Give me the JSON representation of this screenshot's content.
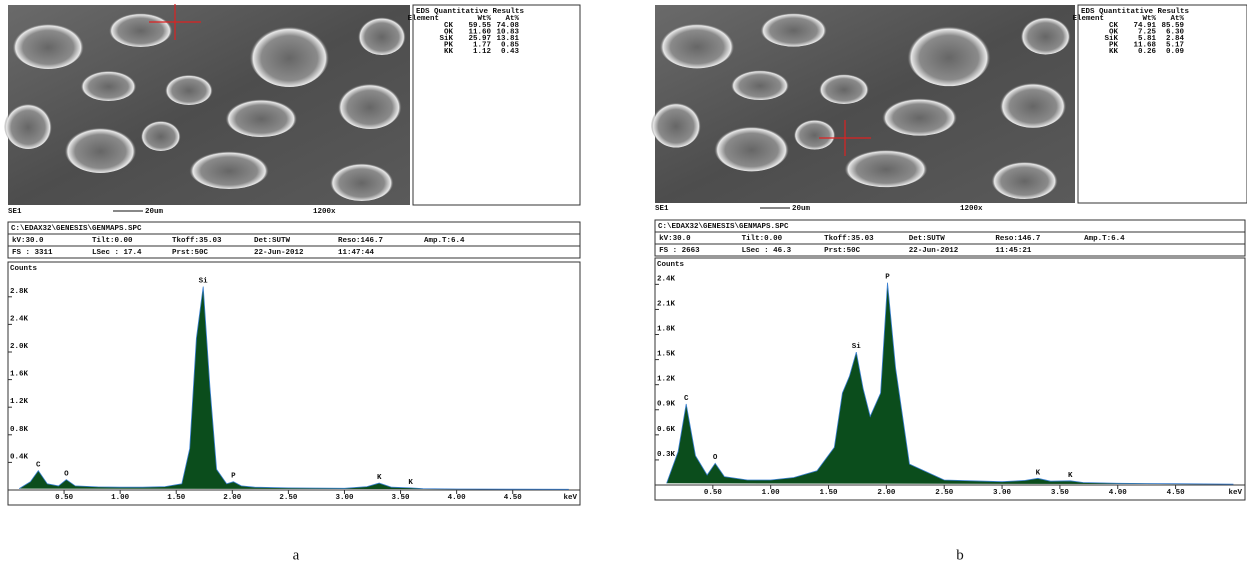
{
  "panels": [
    {
      "sem": {
        "detector": "SE1",
        "scale": "20um",
        "magnification": "1200x"
      },
      "results": {
        "title": "EDS Quantitative Results",
        "header": [
          "Element",
          "Wt%",
          "At%"
        ],
        "rows": [
          [
            "CK",
            "59.55",
            "74.08"
          ],
          [
            "OK",
            "11.60",
            "10.83"
          ],
          [
            "SiK",
            "25.97",
            "13.81"
          ],
          [
            "PK",
            "1.77",
            "0.85"
          ],
          [
            "KK",
            "1.12",
            "0.43"
          ]
        ]
      },
      "spectrum_header": {
        "file": "C:\\EDAX32\\GENESIS\\GENMAPS.SPC",
        "line1": [
          "kV:30.0",
          "Tilt:0.00",
          "Tkoff:35.03",
          "Det:SUTW",
          "Reso:146.7",
          "Amp.T:6.4"
        ],
        "line2": [
          "FS : 3311",
          "LSec : 17.4",
          "Prst:50C",
          "22-Jun-2012",
          "11:47:44"
        ]
      },
      "caption": "a"
    },
    {
      "sem": {
        "detector": "SE1",
        "scale": "20um",
        "magnification": "1200x"
      },
      "results": {
        "title": "EDS Quantitative Results",
        "header": [
          "Element",
          "Wt%",
          "At%"
        ],
        "rows": [
          [
            "CK",
            "74.91",
            "85.59"
          ],
          [
            "OK",
            "7.25",
            "6.30"
          ],
          [
            "SiK",
            "5.81",
            "2.84"
          ],
          [
            "PK",
            "11.68",
            "5.17"
          ],
          [
            "KK",
            "0.26",
            "0.09"
          ]
        ]
      },
      "spectrum_header": {
        "file": "C:\\EDAX32\\GENESIS\\GENMAPS.SPC",
        "line1": [
          "kV:30.0",
          "Tilt:0.00",
          "Tkoff:35.03",
          "Det:SUTW",
          "Reso:146.7",
          "Amp.T:6.4"
        ],
        "line2": [
          "FS : 2663",
          "LSec : 46.3",
          "Prst:50C",
          "22-Jun-2012",
          "11:45:21"
        ]
      },
      "caption": "b"
    }
  ],
  "chart_data": [
    {
      "type": "area",
      "ylabel": "Counts",
      "xlabel": "keV",
      "color": "#0b4d1c",
      "line_color": "#3a7fd0",
      "x": [
        0.1,
        0.2,
        0.27,
        0.35,
        0.45,
        0.52,
        0.6,
        0.8,
        1.0,
        1.2,
        1.4,
        1.55,
        1.62,
        1.68,
        1.74,
        1.8,
        1.86,
        1.95,
        2.01,
        2.08,
        2.2,
        2.5,
        3.0,
        3.2,
        3.31,
        3.42,
        3.59,
        3.7,
        4.0,
        4.5,
        5.0
      ],
      "values": [
        20,
        120,
        280,
        90,
        60,
        150,
        60,
        45,
        40,
        40,
        50,
        90,
        600,
        2200,
        2950,
        1500,
        300,
        90,
        120,
        60,
        40,
        30,
        25,
        50,
        100,
        40,
        30,
        20,
        15,
        12,
        10
      ],
      "xlim": [
        0,
        5.1
      ],
      "ylim": [
        0,
        3000
      ],
      "xticks": [
        {
          "value": 0.5,
          "label": "0.50"
        },
        {
          "value": 1,
          "label": "1.00"
        },
        {
          "value": 1.5,
          "label": "1.50"
        },
        {
          "value": 2,
          "label": "2.00"
        },
        {
          "value": 2.5,
          "label": "2.50"
        },
        {
          "value": 3,
          "label": "3.00"
        },
        {
          "value": 3.5,
          "label": "3.50"
        },
        {
          "value": 4,
          "label": "4.00"
        },
        {
          "value": 4.5,
          "label": "4.50"
        }
      ],
      "yticks": [
        {
          "value": 400,
          "label": "0.4K"
        },
        {
          "value": 800,
          "label": "0.8K"
        },
        {
          "value": 1200,
          "label": "1.2K"
        },
        {
          "value": 1600,
          "label": "1.6K"
        },
        {
          "value": 2000,
          "label": "2.0K"
        },
        {
          "value": 2400,
          "label": "2.4K"
        },
        {
          "value": 2800,
          "label": "2.8K"
        }
      ],
      "peak_labels": [
        {
          "text": "C",
          "x": 0.27
        },
        {
          "text": "O",
          "x": 0.52
        },
        {
          "text": "Si",
          "x": 1.74
        },
        {
          "text": "P",
          "x": 2.01
        },
        {
          "text": "K",
          "x": 3.31
        },
        {
          "text": "K",
          "x": 3.59
        }
      ]
    },
    {
      "type": "area",
      "ylabel": "Counts",
      "xlabel": "keV",
      "color": "#0b4d1c",
      "line_color": "#3a7fd0",
      "x": [
        0.1,
        0.2,
        0.27,
        0.35,
        0.45,
        0.52,
        0.6,
        0.8,
        1.0,
        1.2,
        1.4,
        1.55,
        1.62,
        1.68,
        1.74,
        1.8,
        1.86,
        1.95,
        2.01,
        2.08,
        2.2,
        2.5,
        3.0,
        3.2,
        3.31,
        3.42,
        3.59,
        3.7,
        4.0,
        4.5,
        5.0
      ],
      "values": [
        20,
        400,
        970,
        350,
        120,
        260,
        100,
        60,
        60,
        90,
        170,
        450,
        1100,
        1300,
        1590,
        1150,
        820,
        1100,
        2420,
        1400,
        250,
        60,
        40,
        55,
        80,
        45,
        50,
        30,
        20,
        15,
        10
      ],
      "xlim": [
        0,
        5.1
      ],
      "ylim": [
        0,
        2500
      ],
      "xticks": [
        {
          "value": 0.5,
          "label": "0.50"
        },
        {
          "value": 1,
          "label": "1.00"
        },
        {
          "value": 1.5,
          "label": "1.50"
        },
        {
          "value": 2,
          "label": "2.00"
        },
        {
          "value": 2.5,
          "label": "2.50"
        },
        {
          "value": 3,
          "label": "3.00"
        },
        {
          "value": 3.5,
          "label": "3.50"
        },
        {
          "value": 4,
          "label": "4.00"
        },
        {
          "value": 4.5,
          "label": "4.50"
        }
      ],
      "yticks": [
        {
          "value": 300,
          "label": "0.3K"
        },
        {
          "value": 600,
          "label": "0.6K"
        },
        {
          "value": 900,
          "label": "0.9K"
        },
        {
          "value": 1200,
          "label": "1.2K"
        },
        {
          "value": 1500,
          "label": "1.5K"
        },
        {
          "value": 1800,
          "label": "1.8K"
        },
        {
          "value": 2100,
          "label": "2.1K"
        },
        {
          "value": 2400,
          "label": "2.4K"
        }
      ],
      "peak_labels": [
        {
          "text": "C",
          "x": 0.27
        },
        {
          "text": "O",
          "x": 0.52
        },
        {
          "text": "Si",
          "x": 1.74
        },
        {
          "text": "P",
          "x": 2.01
        },
        {
          "text": "K",
          "x": 3.31
        },
        {
          "text": "K",
          "x": 3.59
        }
      ]
    }
  ]
}
